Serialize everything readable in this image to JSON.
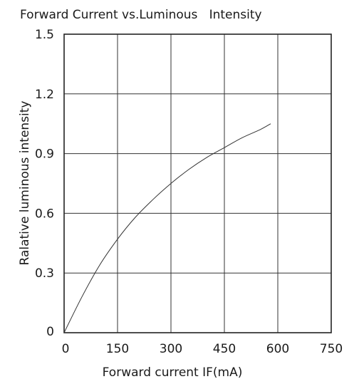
{
  "chart_data": {
    "type": "line",
    "title": "Forward Current vs.Luminous   Intensity",
    "xlabel": "Forward current IF(mA)",
    "ylabel": "Ralative luminous intensity",
    "xlim": [
      0,
      750
    ],
    "ylim": [
      0,
      1.5
    ],
    "x_ticks": [
      "0",
      "150",
      "300",
      "450",
      "600",
      "750"
    ],
    "y_ticks": [
      "0",
      "0.3",
      "0.6",
      "0.9",
      "1.2",
      "1.5"
    ],
    "grid": true,
    "series": [
      {
        "x": [
          0,
          50,
          100,
          150,
          200,
          250,
          300,
          350,
          400,
          450,
          500,
          550,
          580
        ],
        "y": [
          0.0,
          0.18,
          0.34,
          0.47,
          0.58,
          0.67,
          0.75,
          0.82,
          0.88,
          0.93,
          0.98,
          1.02,
          1.05
        ]
      }
    ]
  }
}
